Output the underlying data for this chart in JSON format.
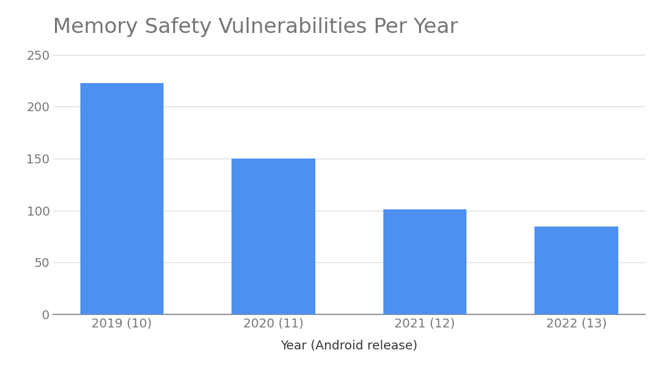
{
  "title": "Memory Safety Vulnerabilities Per Year",
  "xlabel": "Year (Android release)",
  "ylabel": "",
  "categories": [
    "2019 (10)",
    "2020 (11)",
    "2021 (12)",
    "2022 (13)"
  ],
  "values": [
    223,
    150,
    101,
    85
  ],
  "bar_color": "#4d90f0",
  "background_color": "#ffffff",
  "ylim": [
    0,
    260
  ],
  "yticks": [
    0,
    50,
    100,
    150,
    200,
    250
  ],
  "title_fontsize": 22,
  "axis_label_fontsize": 13,
  "tick_fontsize": 13,
  "title_color": "#757575",
  "tick_color": "#757575",
  "xlabel_color": "#333333",
  "grid_color": "#e0e0e0",
  "bar_width": 0.55
}
